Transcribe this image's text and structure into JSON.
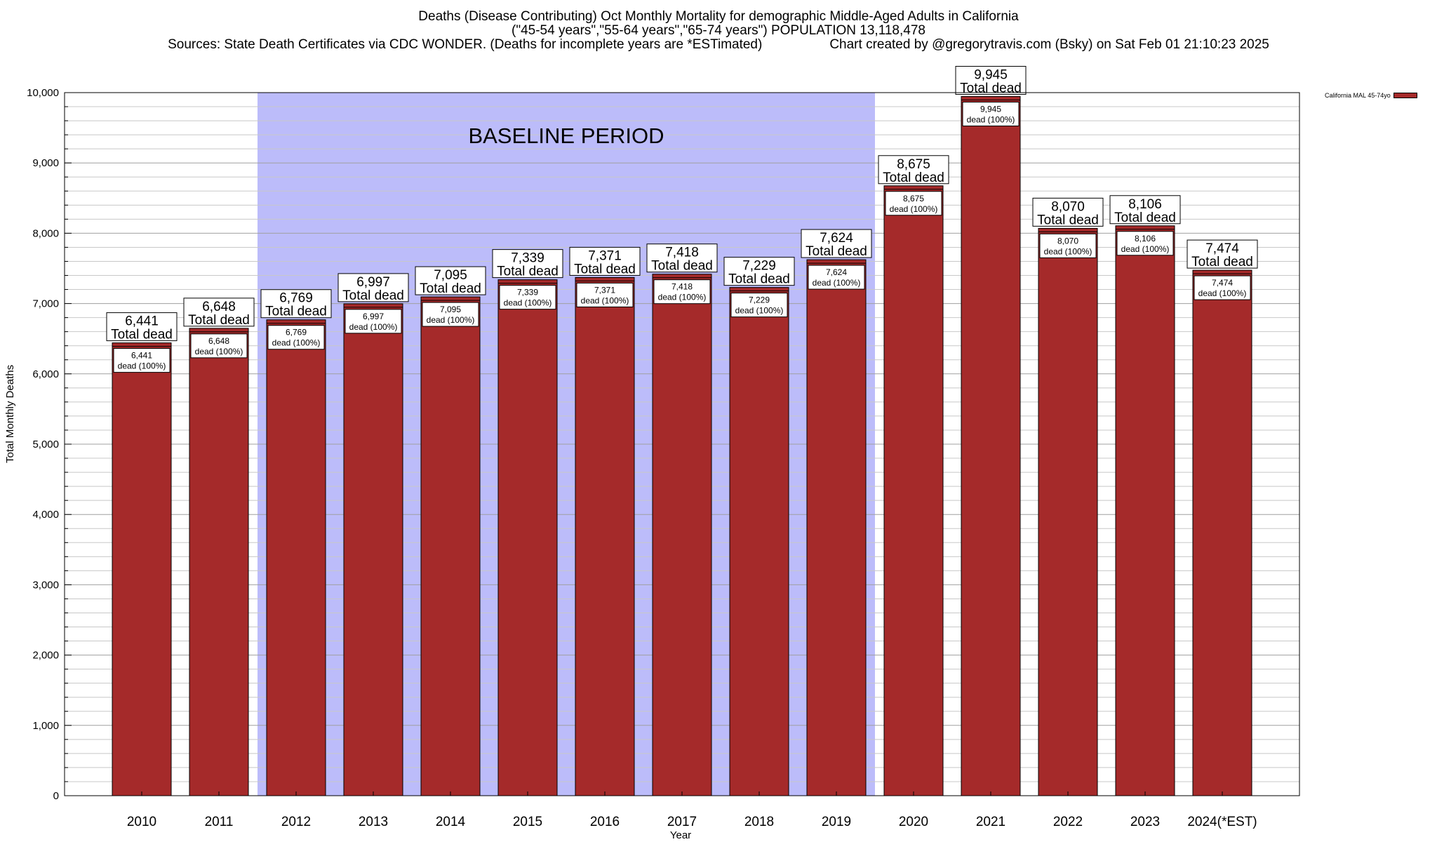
{
  "chart_data": {
    "type": "bar",
    "title": "Deaths (Disease Contributing) Oct Monthly Mortality for demographic Middle-Aged Adults in California",
    "subtitle": "(\"45-54 years\",\"55-64 years\",\"65-74 years\") POPULATION 13,118,478",
    "sources": "Sources: State Death Certificates via CDC WONDER. (Deaths for incomplete years are *ESTimated)",
    "credit": "Chart created by @gregorytravis.com (Bsky) on Sat Feb 01 21:10:23 2025",
    "xlabel": "Year",
    "ylabel": "Total Monthly Deaths",
    "ylim": [
      0,
      10000
    ],
    "yticks": [
      0,
      1000,
      2000,
      3000,
      4000,
      5000,
      6000,
      7000,
      8000,
      9000,
      10000
    ],
    "ytick_labels": [
      "0",
      "1,000",
      "2,000",
      "3,000",
      "4,000",
      "5,000",
      "6,000",
      "7,000",
      "8,000",
      "9,000",
      "10,000"
    ],
    "grid": true,
    "legend": "top-right",
    "legend_entries": [
      "California MAL 45-74yo"
    ],
    "categories": [
      "2010",
      "2011",
      "2012",
      "2013",
      "2014",
      "2015",
      "2016",
      "2017",
      "2018",
      "2019",
      "2020",
      "2021",
      "2022",
      "2023",
      "2024(*EST)"
    ],
    "values": [
      6441,
      6648,
      6769,
      6997,
      7095,
      7339,
      7371,
      7418,
      7229,
      7624,
      8675,
      9945,
      8070,
      8106,
      7474
    ],
    "value_labels": [
      "6,441",
      "6,648",
      "6,769",
      "6,997",
      "7,095",
      "7,339",
      "7,371",
      "7,418",
      "7,229",
      "7,624",
      "8,675",
      "9,945",
      "8,070",
      "8,106",
      "7,474"
    ],
    "total_label": "Total dead",
    "inner_label": "dead (100%)",
    "baseline": {
      "label": "BASELINE PERIOD",
      "start_category": "2012",
      "end_category": "2019"
    },
    "colors": {
      "bar": "#a52a2a",
      "baseline_fill": "#bcbcfa",
      "grid": "#b4b4b4"
    }
  }
}
